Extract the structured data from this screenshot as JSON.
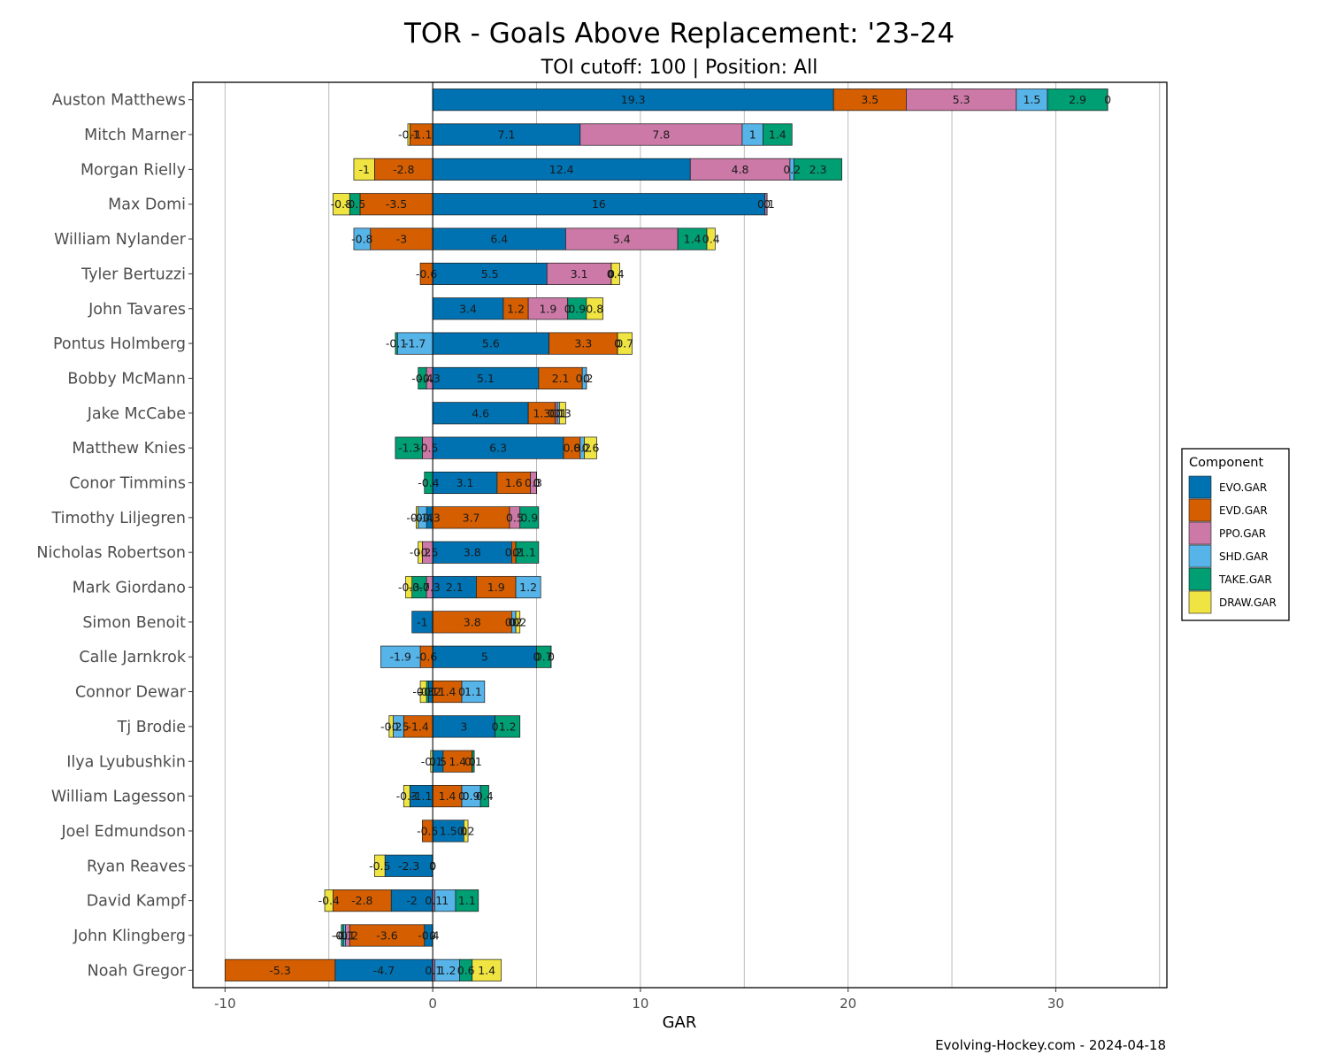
{
  "chart_data": {
    "type": "bar",
    "orientation": "horizontal",
    "stacked": true,
    "title": "TOR - Goals Above Replacement: '23-24",
    "subtitle": "TOI cutoff: 100 | Position: All",
    "xlabel": "GAR",
    "ylabel": "",
    "caption": "Evolving-Hockey.com - 2024-04-18",
    "xlim": [
      -10,
      35
    ],
    "xticks": [
      -10,
      0,
      10,
      20,
      30
    ],
    "grid": true,
    "legend_title": "Component",
    "legend_position": "right",
    "components": [
      "EVO.GAR",
      "EVD.GAR",
      "PPO.GAR",
      "SHD.GAR",
      "TAKE.GAR",
      "DRAW.GAR"
    ],
    "colors": {
      "EVO.GAR": "#0072B2",
      "EVD.GAR": "#D55E00",
      "PPO.GAR": "#CC79A7",
      "SHD.GAR": "#56B4E9",
      "TAKE.GAR": "#009E73",
      "DRAW.GAR": "#F0E442"
    },
    "players": [
      {
        "name": "Auston Matthews",
        "values": {
          "EVO.GAR": 19.3,
          "EVD.GAR": 3.5,
          "PPO.GAR": 5.3,
          "SHD.GAR": 1.5,
          "TAKE.GAR": 2.9,
          "DRAW.GAR": 0
        }
      },
      {
        "name": "Mitch Marner",
        "values": {
          "EVO.GAR": 7.1,
          "EVD.GAR": -1.1,
          "PPO.GAR": 7.8,
          "SHD.GAR": 1,
          "TAKE.GAR": 1.4,
          "DRAW.GAR": -0.1
        }
      },
      {
        "name": "Morgan Rielly",
        "values": {
          "EVO.GAR": 12.4,
          "EVD.GAR": -2.8,
          "PPO.GAR": 4.8,
          "SHD.GAR": 0.2,
          "TAKE.GAR": 2.3,
          "DRAW.GAR": -1
        }
      },
      {
        "name": "Max Domi",
        "values": {
          "EVO.GAR": 16,
          "EVD.GAR": -3.5,
          "PPO.GAR": 0.1,
          "SHD.GAR": 0,
          "TAKE.GAR": -0.5,
          "DRAW.GAR": -0.8
        }
      },
      {
        "name": "William Nylander",
        "values": {
          "EVO.GAR": 6.4,
          "EVD.GAR": -3,
          "PPO.GAR": 5.4,
          "SHD.GAR": -0.8,
          "TAKE.GAR": 1.4,
          "DRAW.GAR": 0.4
        }
      },
      {
        "name": "Tyler Bertuzzi",
        "values": {
          "EVO.GAR": 5.5,
          "EVD.GAR": -0.6,
          "PPO.GAR": 3.1,
          "SHD.GAR": 0,
          "TAKE.GAR": 0,
          "DRAW.GAR": 0.4
        }
      },
      {
        "name": "John Tavares",
        "values": {
          "EVO.GAR": 3.4,
          "EVD.GAR": 1.2,
          "PPO.GAR": 1.9,
          "SHD.GAR": 0,
          "TAKE.GAR": 0.9,
          "DRAW.GAR": 0.8
        }
      },
      {
        "name": "Pontus Holmberg",
        "values": {
          "EVO.GAR": 5.6,
          "EVD.GAR": 3.3,
          "PPO.GAR": 0,
          "SHD.GAR": -1.7,
          "TAKE.GAR": -0.1,
          "DRAW.GAR": 0.7
        }
      },
      {
        "name": "Bobby McMann",
        "values": {
          "EVO.GAR": 5.1,
          "EVD.GAR": 2.1,
          "PPO.GAR": -0.3,
          "SHD.GAR": 0.2,
          "TAKE.GAR": -0.4,
          "DRAW.GAR": 0
        }
      },
      {
        "name": "Jake McCabe",
        "values": {
          "EVO.GAR": 4.6,
          "EVD.GAR": 1.3,
          "PPO.GAR": 0.1,
          "SHD.GAR": 0.1,
          "TAKE.GAR": 0,
          "DRAW.GAR": 0.3
        }
      },
      {
        "name": "Matthew Knies",
        "values": {
          "EVO.GAR": 6.3,
          "EVD.GAR": 0.8,
          "PPO.GAR": -0.5,
          "SHD.GAR": 0.2,
          "TAKE.GAR": -1.3,
          "DRAW.GAR": 0.6
        }
      },
      {
        "name": "Conor Timmins",
        "values": {
          "EVO.GAR": 3.1,
          "EVD.GAR": 1.6,
          "PPO.GAR": 0.3,
          "SHD.GAR": 0,
          "TAKE.GAR": -0.4,
          "DRAW.GAR": 0
        }
      },
      {
        "name": "Timothy Liljegren",
        "values": {
          "EVO.GAR": -0.3,
          "EVD.GAR": 3.7,
          "PPO.GAR": 0.5,
          "SHD.GAR": -0.4,
          "TAKE.GAR": 0.9,
          "DRAW.GAR": -0.1
        }
      },
      {
        "name": "Nicholas Robertson",
        "values": {
          "EVO.GAR": 3.8,
          "EVD.GAR": 0.2,
          "PPO.GAR": -0.5,
          "SHD.GAR": 0,
          "TAKE.GAR": 1.1,
          "DRAW.GAR": -0.2
        }
      },
      {
        "name": "Mark Giordano",
        "values": {
          "EVO.GAR": 2.1,
          "EVD.GAR": 1.9,
          "PPO.GAR": -0.3,
          "SHD.GAR": 1.2,
          "TAKE.GAR": -0.7,
          "DRAW.GAR": -0.3
        }
      },
      {
        "name": "Simon Benoit",
        "values": {
          "EVO.GAR": -1,
          "EVD.GAR": 3.8,
          "PPO.GAR": 0,
          "SHD.GAR": 0.2,
          "TAKE.GAR": 0,
          "DRAW.GAR": 0.2
        }
      },
      {
        "name": "Calle Jarnkrok",
        "values": {
          "EVO.GAR": 5,
          "EVD.GAR": -0.6,
          "PPO.GAR": 0,
          "SHD.GAR": -1.9,
          "TAKE.GAR": 0.7,
          "DRAW.GAR": 0
        }
      },
      {
        "name": "Connor Dewar",
        "values": {
          "EVO.GAR": -0.2,
          "EVD.GAR": 1.4,
          "PPO.GAR": 0,
          "SHD.GAR": 1.1,
          "TAKE.GAR": -0.1,
          "DRAW.GAR": -0.3
        }
      },
      {
        "name": "Tj Brodie",
        "values": {
          "EVO.GAR": 3,
          "EVD.GAR": -1.4,
          "PPO.GAR": 0,
          "SHD.GAR": -0.5,
          "TAKE.GAR": 1.2,
          "DRAW.GAR": -0.2
        }
      },
      {
        "name": "Ilya Lyubushkin",
        "values": {
          "EVO.GAR": 0.5,
          "EVD.GAR": 1.4,
          "PPO.GAR": 0,
          "SHD.GAR": 0,
          "TAKE.GAR": 0.1,
          "DRAW.GAR": -0.1
        }
      },
      {
        "name": "William Lagesson",
        "values": {
          "EVO.GAR": -1.1,
          "EVD.GAR": 1.4,
          "PPO.GAR": 0,
          "SHD.GAR": 0.9,
          "TAKE.GAR": 0.4,
          "DRAW.GAR": -0.3
        }
      },
      {
        "name": "Joel Edmundson",
        "values": {
          "EVO.GAR": 1.5,
          "EVD.GAR": -0.5,
          "PPO.GAR": 0,
          "SHD.GAR": 0,
          "TAKE.GAR": 0,
          "DRAW.GAR": 0.2
        }
      },
      {
        "name": "Ryan Reaves",
        "values": {
          "EVO.GAR": -2.3,
          "EVD.GAR": 0,
          "PPO.GAR": 0,
          "SHD.GAR": 0,
          "TAKE.GAR": 0,
          "DRAW.GAR": -0.5
        }
      },
      {
        "name": "David Kampf",
        "values": {
          "EVO.GAR": -2,
          "EVD.GAR": -2.8,
          "PPO.GAR": 0.1,
          "SHD.GAR": 1,
          "TAKE.GAR": 1.1,
          "DRAW.GAR": -0.4
        }
      },
      {
        "name": "John Klingberg",
        "values": {
          "EVO.GAR": -0.4,
          "EVD.GAR": -3.6,
          "PPO.GAR": -0.2,
          "SHD.GAR": -0.1,
          "TAKE.GAR": -0.1,
          "DRAW.GAR": 0
        }
      },
      {
        "name": "Noah Gregor",
        "values": {
          "EVO.GAR": -4.7,
          "EVD.GAR": -5.3,
          "PPO.GAR": 0.1,
          "SHD.GAR": 1.2,
          "TAKE.GAR": 0.6,
          "DRAW.GAR": 1.4
        }
      }
    ]
  }
}
